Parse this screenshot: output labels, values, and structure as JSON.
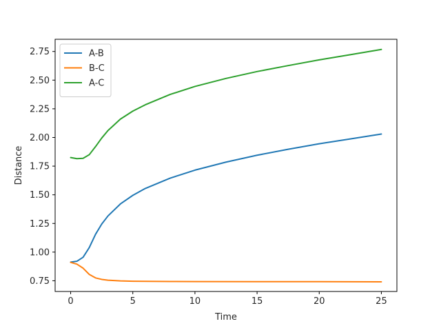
{
  "chart_data": {
    "type": "line",
    "title": "",
    "xlabel": "Time",
    "ylabel": "Distance",
    "xlim": [
      -1.25,
      26.25
    ],
    "ylim": [
      0.6565,
      2.8565
    ],
    "xticks": [
      0,
      5,
      10,
      15,
      20,
      25
    ],
    "yticks": [
      0.75,
      1.0,
      1.25,
      1.5,
      1.75,
      2.0,
      2.25,
      2.5,
      2.75
    ],
    "grid": false,
    "legend_position": "top-left",
    "series": [
      {
        "name": "A-B",
        "color": "#1f77b4",
        "x": [
          0,
          0.5,
          1,
          1.5,
          2,
          2.5,
          3,
          4,
          5,
          6,
          8,
          10,
          12.5,
          15,
          17.5,
          20,
          22.5,
          25
        ],
        "y": [
          0.913,
          0.92,
          0.955,
          1.04,
          1.155,
          1.245,
          1.315,
          1.42,
          1.495,
          1.555,
          1.645,
          1.715,
          1.785,
          1.845,
          1.897,
          1.945,
          1.987,
          2.03
        ]
      },
      {
        "name": "B-C",
        "color": "#ff7f0e",
        "x": [
          0,
          0.5,
          1,
          1.5,
          2,
          2.5,
          3,
          4,
          5,
          6,
          8,
          10,
          15,
          20,
          25
        ],
        "y": [
          0.91,
          0.895,
          0.86,
          0.805,
          0.775,
          0.762,
          0.755,
          0.749,
          0.746,
          0.745,
          0.744,
          0.743,
          0.742,
          0.742,
          0.741
        ]
      },
      {
        "name": "A-C",
        "color": "#2ca02c",
        "x": [
          0,
          0.5,
          1,
          1.5,
          2,
          2.5,
          3,
          4,
          5,
          6,
          8,
          10,
          12.5,
          15,
          17.5,
          20,
          22.5,
          25
        ],
        "y": [
          1.825,
          1.815,
          1.818,
          1.85,
          1.92,
          1.995,
          2.06,
          2.16,
          2.23,
          2.285,
          2.375,
          2.445,
          2.515,
          2.575,
          2.627,
          2.677,
          2.722,
          2.768
        ]
      }
    ]
  }
}
